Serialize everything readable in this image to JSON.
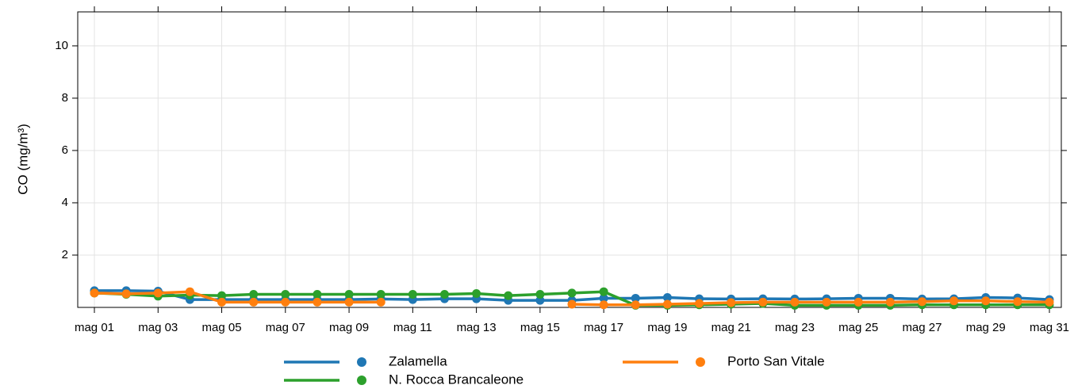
{
  "chart_data": {
    "type": "line",
    "y_label": "CO (mg/m³)",
    "categories": [
      "mag 01",
      null,
      "mag 03",
      null,
      "mag 05",
      null,
      "mag 07",
      null,
      "mag 09",
      null,
      "mag 11",
      null,
      "mag 13",
      null,
      "mag 15",
      null,
      "mag 17",
      null,
      "mag 19",
      null,
      "mag 21",
      null,
      "mag 23",
      null,
      "mag 25",
      null,
      "mag 27",
      null,
      "mag 29",
      null,
      "mag 31"
    ],
    "ylim": [
      0,
      11.3
    ],
    "yticks": [
      2,
      4,
      6,
      8,
      10
    ],
    "grid": true,
    "series": [
      {
        "name": "Zalamella",
        "color": "#1f77b4",
        "values": [
          0.64,
          0.64,
          0.62,
          0.3,
          0.3,
          0.3,
          0.3,
          0.3,
          0.3,
          0.32,
          0.3,
          0.33,
          0.33,
          0.27,
          0.27,
          0.27,
          0.35,
          0.35,
          0.38,
          0.33,
          0.32,
          0.33,
          0.32,
          0.33,
          0.35,
          0.35,
          0.32,
          0.33,
          0.38,
          0.36,
          0.3
        ]
      },
      {
        "name": "N. Rocca Brancaleone",
        "color": "#2ca02c",
        "values": [
          0.55,
          0.5,
          0.43,
          0.47,
          0.45,
          0.5,
          0.5,
          0.5,
          0.5,
          0.5,
          0.5,
          0.5,
          0.53,
          0.45,
          0.5,
          0.55,
          0.6,
          0.08,
          0.08,
          0.1,
          0.12,
          0.15,
          0.08,
          0.08,
          0.08,
          0.08,
          0.1,
          0.1,
          0.1,
          0.1,
          0.1
        ]
      },
      {
        "name": "Porto San Vitale",
        "color": "#ff7f0e",
        "values": [
          0.55,
          0.52,
          0.55,
          0.6,
          0.2,
          0.2,
          0.2,
          0.2,
          0.2,
          0.2,
          null,
          null,
          null,
          null,
          null,
          0.12,
          0.1,
          0.1,
          0.12,
          0.15,
          0.18,
          0.2,
          0.2,
          0.2,
          0.2,
          0.2,
          0.22,
          0.25,
          0.25,
          0.22,
          0.2
        ]
      }
    ]
  }
}
